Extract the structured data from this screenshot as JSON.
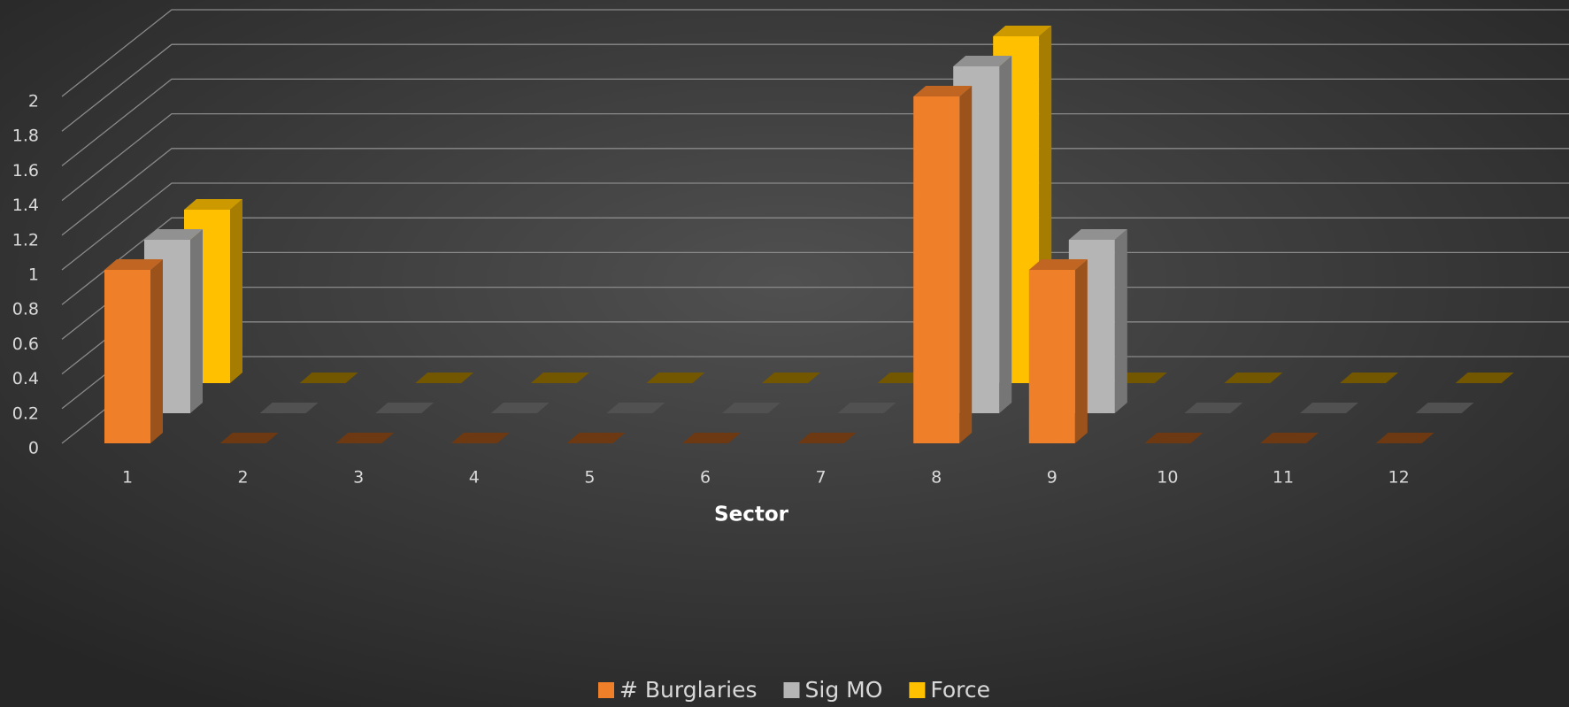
{
  "chart_data": {
    "type": "bar3d",
    "x_label": "Sector",
    "categories": [
      "1",
      "2",
      "3",
      "4",
      "5",
      "6",
      "7",
      "8",
      "9",
      "10",
      "11",
      "12"
    ],
    "series": [
      {
        "name": "# Burglaries",
        "color": "#f07f2a",
        "values": [
          1,
          0,
          0,
          0,
          0,
          0,
          0,
          2,
          1,
          0,
          0,
          0
        ]
      },
      {
        "name": "Sig MO",
        "color": "#b5b5b5",
        "values": [
          1,
          0,
          0,
          0,
          0,
          0,
          0,
          2,
          1,
          0,
          0,
          0
        ]
      },
      {
        "name": "Force",
        "color": "#ffc000",
        "values": [
          1,
          0,
          0,
          0,
          0,
          0,
          0,
          2,
          0,
          0,
          0,
          0
        ]
      }
    ],
    "ylim": [
      0,
      2
    ],
    "yticks": [
      0,
      0.2,
      0.4,
      0.6,
      0.8,
      1,
      1.2,
      1.4,
      1.6,
      1.8,
      2
    ],
    "grid": true,
    "legend": "bottom"
  }
}
